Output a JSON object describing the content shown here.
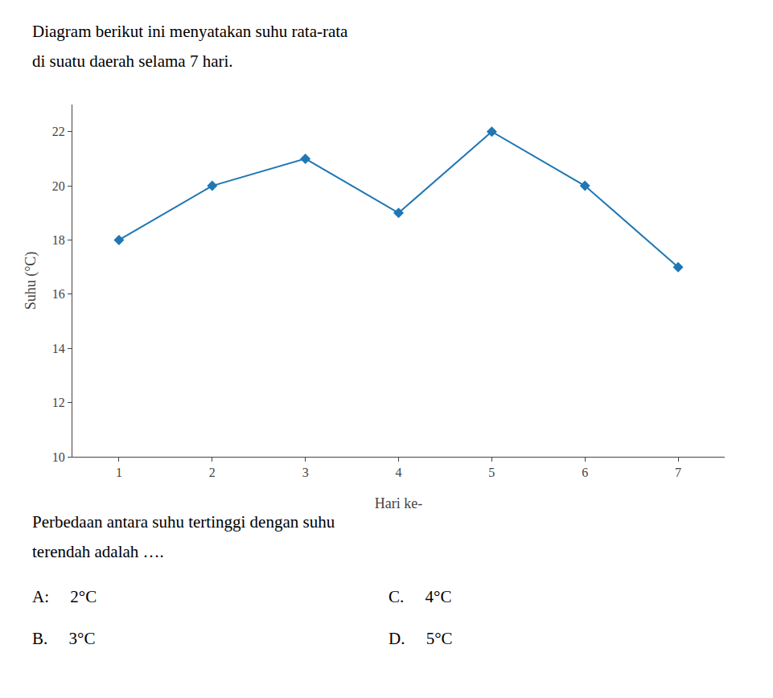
{
  "chart_data": {
    "type": "line",
    "title": "Diagram berikut ini menyatakan suhu rata-rata",
    "subtitle": "di suatu daerah selama 7 hari.",
    "x": [
      1,
      2,
      3,
      4,
      5,
      6,
      7
    ],
    "values": [
      18,
      20,
      21,
      19,
      22,
      20,
      17
    ],
    "xlabel": "Hari ke-",
    "ylabel": "Suhu (°C)",
    "xlim": [
      0.5,
      7.5
    ],
    "ylim": [
      10,
      23
    ],
    "xticks": [
      1,
      2,
      3,
      4,
      5,
      6,
      7
    ],
    "yticks": [
      10,
      12,
      14,
      16,
      18,
      20,
      22
    ],
    "marker": "diamond",
    "grid": false,
    "annotations": [
      "Perbedaan antara suhu tertinggi dengan suhu",
      "terendah adalah ….",
      "A:  2°C",
      "C.  4°C",
      "B.  3°C",
      "D.  5°C"
    ]
  }
}
